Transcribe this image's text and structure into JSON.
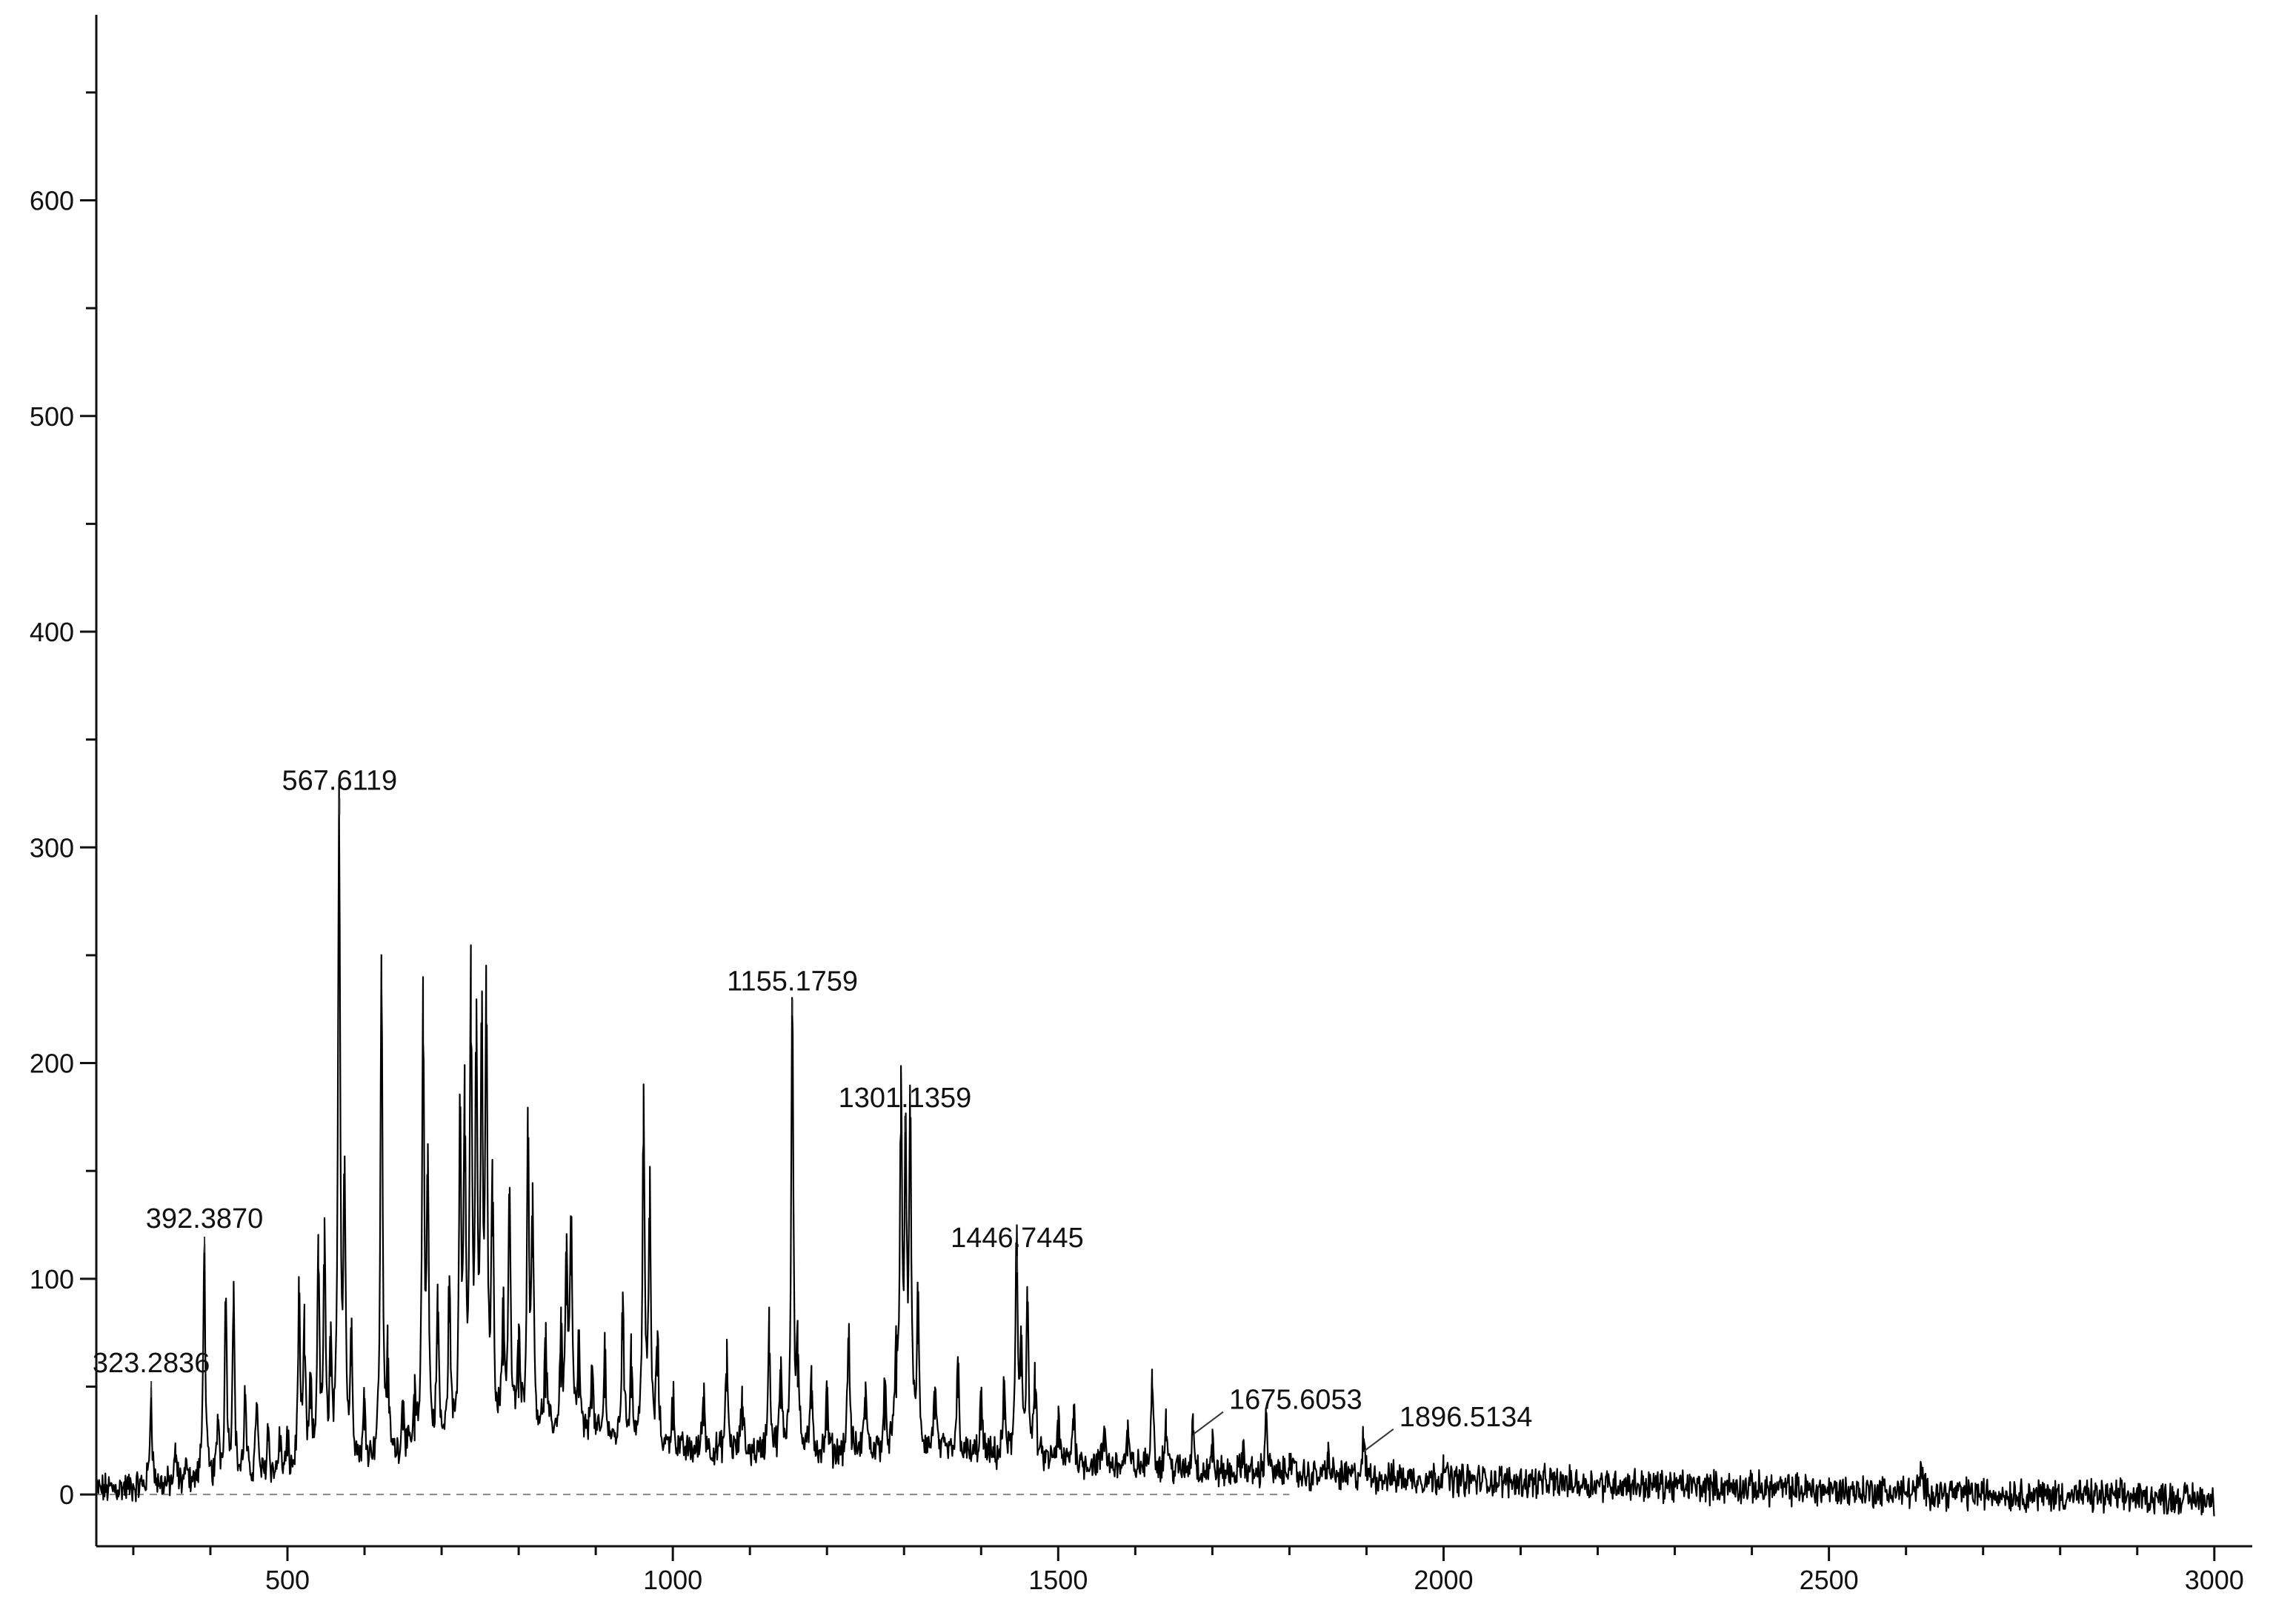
{
  "chart_data": {
    "type": "line",
    "title": "",
    "xlabel": "",
    "ylabel": "",
    "xlim": [
      250,
      3000
    ],
    "ylim": [
      -20,
      690
    ],
    "x_major_ticks": [
      500,
      1000,
      1500,
      2000,
      2500,
      3000
    ],
    "x_tick_labels": [
      "500",
      "1000",
      "1500",
      "2000",
      "2500",
      "3000"
    ],
    "x_minor_step": 100,
    "y_major_ticks": [
      0,
      100,
      200,
      300,
      400,
      500,
      600
    ],
    "y_tick_labels": [
      "0",
      "100",
      "200",
      "300",
      "400",
      "500",
      "600"
    ],
    "y_minor_step": 50,
    "grid": false,
    "legend": "none",
    "line_color": "#000000",
    "baseline_color": "#888888",
    "baseline_dashed_until": 1800,
    "peak_annotations": [
      {
        "label": "323.2836",
        "x": 323.28,
        "y": 45
      },
      {
        "label": "392.3870",
        "x": 392.39,
        "y": 112
      },
      {
        "label": "567.6119",
        "x": 567.61,
        "y": 315
      },
      {
        "label": "1155.1759",
        "x": 1155.18,
        "y": 222
      },
      {
        "label": "1301.1359",
        "x": 1301.14,
        "y": 168
      },
      {
        "label": "1446.7445",
        "x": 1446.74,
        "y": 103
      },
      {
        "label": "1675.6053",
        "x": 1675.61,
        "y": 28
      },
      {
        "label": "1896.5134",
        "x": 1896.51,
        "y": 20
      }
    ],
    "peaks": [
      {
        "x": 323,
        "y": 45
      },
      {
        "x": 355,
        "y": 15
      },
      {
        "x": 370,
        "y": 12
      },
      {
        "x": 392,
        "y": 112
      },
      {
        "x": 410,
        "y": 30
      },
      {
        "x": 420,
        "y": 88
      },
      {
        "x": 430,
        "y": 88
      },
      {
        "x": 445,
        "y": 40
      },
      {
        "x": 460,
        "y": 38
      },
      {
        "x": 475,
        "y": 25
      },
      {
        "x": 490,
        "y": 20
      },
      {
        "x": 500,
        "y": 18
      },
      {
        "x": 515,
        "y": 85
      },
      {
        "x": 522,
        "y": 65
      },
      {
        "x": 530,
        "y": 40
      },
      {
        "x": 540,
        "y": 105
      },
      {
        "x": 548,
        "y": 104
      },
      {
        "x": 556,
        "y": 55
      },
      {
        "x": 567,
        "y": 315
      },
      {
        "x": 574,
        "y": 135
      },
      {
        "x": 583,
        "y": 60
      },
      {
        "x": 600,
        "y": 30
      },
      {
        "x": 622,
        "y": 235
      },
      {
        "x": 630,
        "y": 45
      },
      {
        "x": 650,
        "y": 30
      },
      {
        "x": 665,
        "y": 25
      },
      {
        "x": 676,
        "y": 210
      },
      {
        "x": 682,
        "y": 128
      },
      {
        "x": 695,
        "y": 70
      },
      {
        "x": 710,
        "y": 80
      },
      {
        "x": 724,
        "y": 158
      },
      {
        "x": 730,
        "y": 150
      },
      {
        "x": 738,
        "y": 210
      },
      {
        "x": 745,
        "y": 180
      },
      {
        "x": 752,
        "y": 182
      },
      {
        "x": 758,
        "y": 195
      },
      {
        "x": 766,
        "y": 120
      },
      {
        "x": 780,
        "y": 60
      },
      {
        "x": 788,
        "y": 115
      },
      {
        "x": 800,
        "y": 45
      },
      {
        "x": 812,
        "y": 140
      },
      {
        "x": 818,
        "y": 110
      },
      {
        "x": 835,
        "y": 45
      },
      {
        "x": 855,
        "y": 50
      },
      {
        "x": 862,
        "y": 88
      },
      {
        "x": 868,
        "y": 102
      },
      {
        "x": 878,
        "y": 45
      },
      {
        "x": 895,
        "y": 40
      },
      {
        "x": 912,
        "y": 45
      },
      {
        "x": 935,
        "y": 72
      },
      {
        "x": 946,
        "y": 45
      },
      {
        "x": 962,
        "y": 163
      },
      {
        "x": 970,
        "y": 120
      },
      {
        "x": 980,
        "y": 55
      },
      {
        "x": 1000,
        "y": 30
      },
      {
        "x": 1040,
        "y": 32
      },
      {
        "x": 1070,
        "y": 48
      },
      {
        "x": 1090,
        "y": 30
      },
      {
        "x": 1125,
        "y": 63
      },
      {
        "x": 1140,
        "y": 40
      },
      {
        "x": 1155,
        "y": 222
      },
      {
        "x": 1162,
        "y": 50
      },
      {
        "x": 1180,
        "y": 40
      },
      {
        "x": 1200,
        "y": 30
      },
      {
        "x": 1228,
        "y": 62
      },
      {
        "x": 1250,
        "y": 35
      },
      {
        "x": 1275,
        "y": 30
      },
      {
        "x": 1290,
        "y": 45
      },
      {
        "x": 1296,
        "y": 168
      },
      {
        "x": 1302,
        "y": 140
      },
      {
        "x": 1308,
        "y": 160
      },
      {
        "x": 1318,
        "y": 70
      },
      {
        "x": 1340,
        "y": 35
      },
      {
        "x": 1370,
        "y": 45
      },
      {
        "x": 1400,
        "y": 30
      },
      {
        "x": 1430,
        "y": 35
      },
      {
        "x": 1446,
        "y": 103
      },
      {
        "x": 1452,
        "y": 55
      },
      {
        "x": 1460,
        "y": 78
      },
      {
        "x": 1470,
        "y": 40
      },
      {
        "x": 1500,
        "y": 22
      },
      {
        "x": 1520,
        "y": 30
      },
      {
        "x": 1560,
        "y": 20
      },
      {
        "x": 1590,
        "y": 18
      },
      {
        "x": 1622,
        "y": 50
      },
      {
        "x": 1640,
        "y": 25
      },
      {
        "x": 1675,
        "y": 28
      },
      {
        "x": 1700,
        "y": 15
      },
      {
        "x": 1740,
        "y": 14
      },
      {
        "x": 1770,
        "y": 32
      },
      {
        "x": 1800,
        "y": 12
      },
      {
        "x": 1850,
        "y": 12
      },
      {
        "x": 1896,
        "y": 20
      },
      {
        "x": 2000,
        "y": 10
      },
      {
        "x": 2620,
        "y": 12
      }
    ],
    "noise": {
      "level_points": [
        {
          "x": 250,
          "y": 2
        },
        {
          "x": 500,
          "y": 8
        },
        {
          "x": 700,
          "y": 20
        },
        {
          "x": 800,
          "y": 30
        },
        {
          "x": 900,
          "y": 25
        },
        {
          "x": 1000,
          "y": 20
        },
        {
          "x": 1200,
          "y": 18
        },
        {
          "x": 1300,
          "y": 20
        },
        {
          "x": 1500,
          "y": 15
        },
        {
          "x": 1700,
          "y": 10
        },
        {
          "x": 2000,
          "y": 7
        },
        {
          "x": 2500,
          "y": 2
        },
        {
          "x": 3000,
          "y": -2
        }
      ],
      "amplitude": 6
    }
  }
}
